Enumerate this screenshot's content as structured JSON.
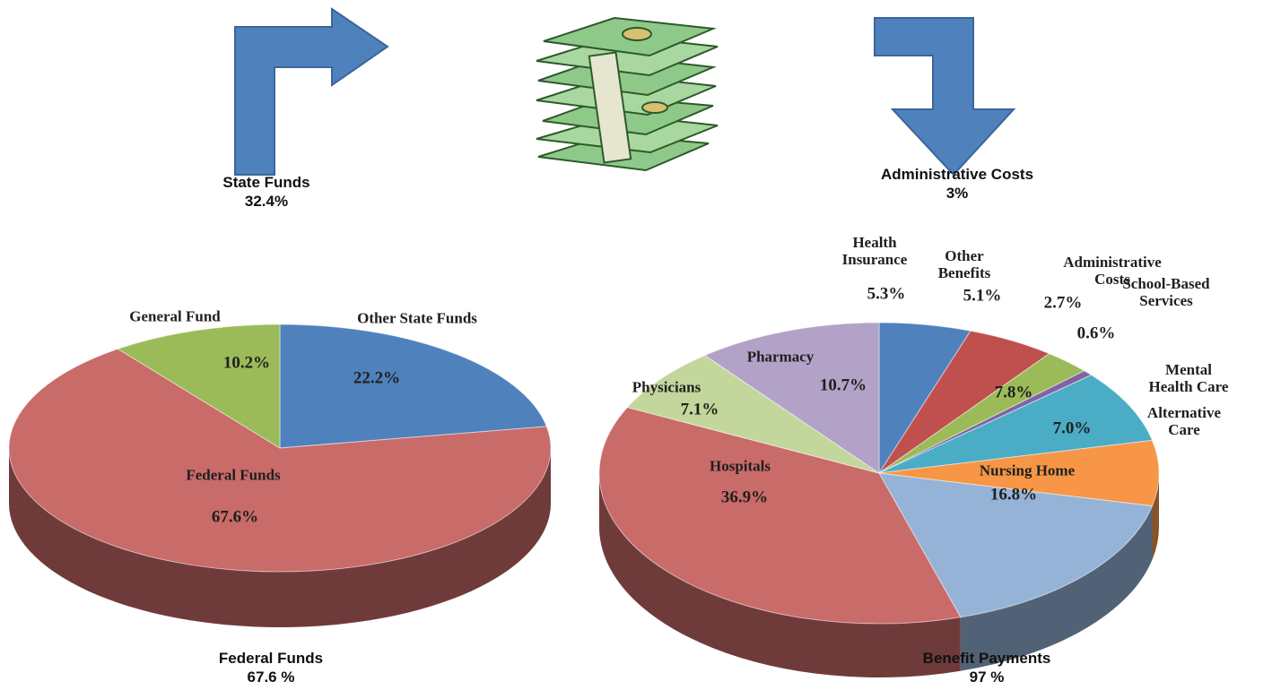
{
  "captions": [
    {
      "title": "State Funds",
      "subtitle": "32.4%"
    },
    {
      "title": "Administrative Costs",
      "subtitle": "3%"
    },
    {
      "title": "Federal Funds",
      "subtitle": "67.6 %"
    },
    {
      "title": "Benefit Payments",
      "subtitle": "97 %"
    }
  ],
  "chart_data": [
    {
      "type": "pie",
      "categories": [
        "Other State Funds",
        "Federal Funds",
        "General Fund"
      ],
      "values": [
        22.2,
        67.6,
        10.2
      ],
      "value_labels": [
        "22.2%",
        "67.6%",
        "10.2%"
      ],
      "colors": [
        "#4f81bd",
        "#c96b69",
        "#9bbb59"
      ]
    },
    {
      "type": "pie",
      "categories": [
        "Health Insurance",
        "Other Benefits",
        "Administrative Costs",
        "School-Based Services",
        "Mental Health Care",
        "Alternative Care",
        "Nursing Home",
        "Hospitals",
        "Physicians",
        "Pharmacy"
      ],
      "values": [
        5.3,
        5.1,
        2.7,
        0.6,
        7.8,
        7.0,
        16.8,
        36.9,
        7.1,
        10.7
      ],
      "value_labels": [
        "5.3%",
        "5.1%",
        "2.7%",
        "0.6%",
        "7.8%",
        "7.0%",
        "16.8%",
        "36.9%",
        "7.1%",
        "10.7%"
      ],
      "colors": [
        "#4f81bd",
        "#c0504d",
        "#9bbb59",
        "#8064a2",
        "#4bacc6",
        "#f79646",
        "#95b3d7",
        "#c96b69",
        "#c3d69b",
        "#b3a2c7"
      ]
    }
  ]
}
